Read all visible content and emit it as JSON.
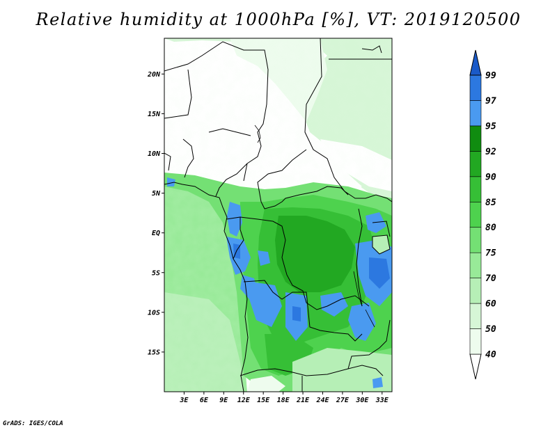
{
  "title": "Relative humidity at 1000hPa [%], VT: 2019120500",
  "credit": "GrADS: IGES/COLA",
  "map": {
    "lon_range": [
      0,
      34.5
    ],
    "lat_range": [
      -20,
      24.5
    ],
    "lat_ticks": [
      {
        "value": 20,
        "label": "20N"
      },
      {
        "value": 15,
        "label": "15N"
      },
      {
        "value": 10,
        "label": "10N"
      },
      {
        "value": 5,
        "label": "5N"
      },
      {
        "value": 0,
        "label": "EQ"
      },
      {
        "value": -5,
        "label": "5S"
      },
      {
        "value": -10,
        "label": "10S"
      },
      {
        "value": -15,
        "label": "15S"
      }
    ],
    "lon_ticks": [
      {
        "value": 3,
        "label": "3E"
      },
      {
        "value": 6,
        "label": "6E"
      },
      {
        "value": 9,
        "label": "9E"
      },
      {
        "value": 12,
        "label": "12E"
      },
      {
        "value": 15,
        "label": "15E"
      },
      {
        "value": 18,
        "label": "18E"
      },
      {
        "value": 21,
        "label": "21E"
      },
      {
        "value": 24,
        "label": "24E"
      },
      {
        "value": 27,
        "label": "27E"
      },
      {
        "value": 30,
        "label": "30E"
      },
      {
        "value": 33,
        "label": "33E"
      }
    ]
  },
  "colorbar": {
    "levels": [
      "40",
      "50",
      "60",
      "70",
      "75",
      "80",
      "85",
      "90",
      "92",
      "95",
      "97",
      "99"
    ],
    "colors": [
      "#ffffff",
      "#eefcee",
      "#d6f6d6",
      "#b6efb6",
      "#98ea98",
      "#74e074",
      "#4ed24e",
      "#36bf36",
      "#22a822",
      "#108c10",
      "#4a9af0",
      "#2c78e0",
      "#1a5ac8"
    ]
  }
}
